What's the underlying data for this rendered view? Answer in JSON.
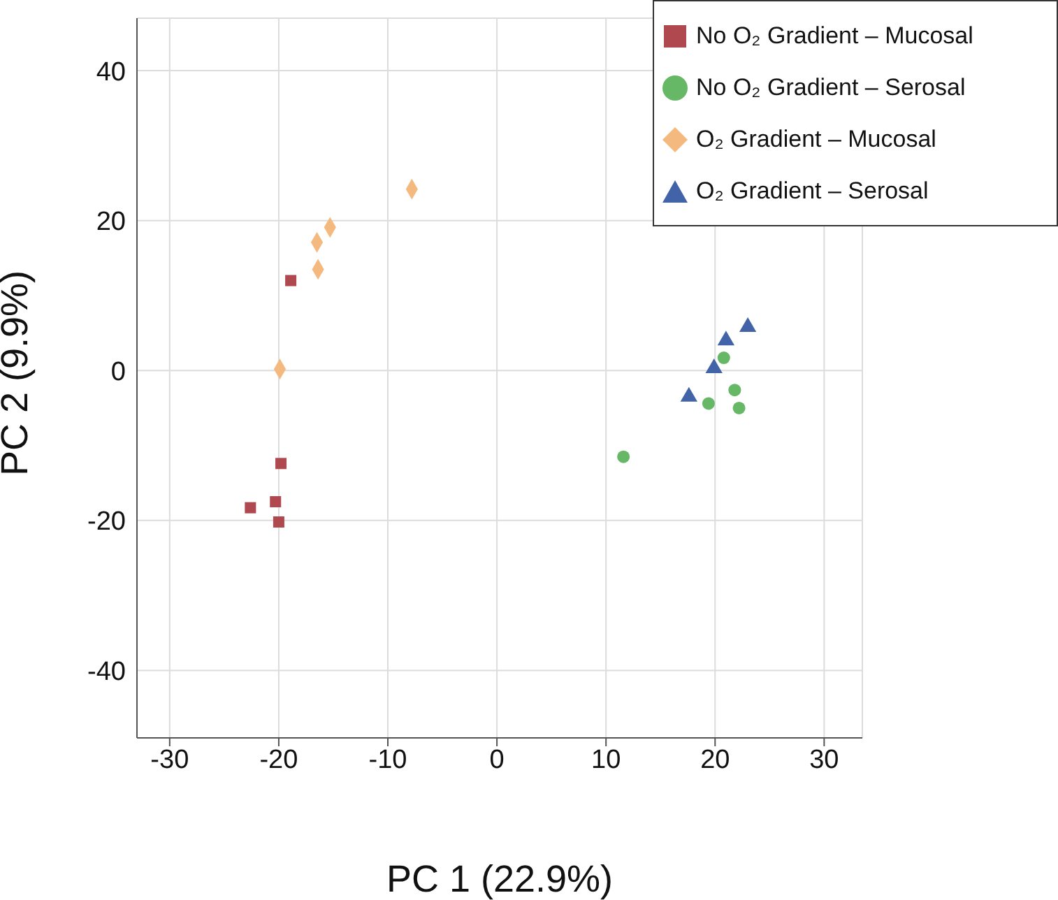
{
  "chart_data": {
    "type": "scatter",
    "xlabel": "PC 1 (22.9%)",
    "ylabel": "PC 2 (9.9%)",
    "xlim": [
      -33,
      33.5
    ],
    "xticks": [
      -30,
      -20,
      -10,
      0,
      10,
      20,
      30
    ],
    "ylim": [
      -49,
      47
    ],
    "yticks": [
      -40,
      -20,
      0,
      20,
      40
    ],
    "grid": true,
    "legend": "top right",
    "series": [
      {
        "name": "No O₂ Gradient – Mucosal",
        "color": "#b0484f",
        "marker": "square",
        "x": [
          -18.9,
          -19.8,
          -20.3,
          -22.6,
          -20.0
        ],
        "values": [
          12.0,
          -12.4,
          -17.5,
          -18.3,
          -20.2
        ]
      },
      {
        "name": "No O₂ Gradient – Serosal",
        "color": "#66b866",
        "marker": "circle",
        "x": [
          20.8,
          21.8,
          19.4,
          22.2,
          11.6
        ],
        "values": [
          1.7,
          -2.6,
          -4.4,
          -5.0,
          -11.5
        ]
      },
      {
        "name": "O₂ Gradient – Mucosal",
        "color": "#f4b97e",
        "marker": "diamond",
        "x": [
          -7.8,
          -15.3,
          -16.5,
          -16.4,
          -19.9
        ],
        "values": [
          24.2,
          19.1,
          17.1,
          13.5,
          0.2
        ]
      },
      {
        "name": "O₂ Gradient – Serosal",
        "color": "#4263a8",
        "marker": "triangle",
        "x": [
          23.0,
          21.0,
          19.9,
          17.6
        ],
        "values": [
          5.8,
          4.0,
          0.3,
          -3.5
        ]
      }
    ]
  }
}
